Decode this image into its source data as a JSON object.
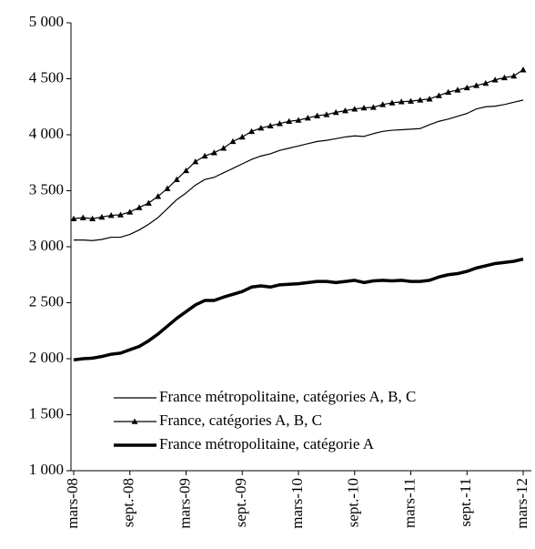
{
  "chart_data": {
    "type": "line",
    "categories": [
      "mars-08",
      null,
      null,
      null,
      null,
      null,
      "sept.-08",
      null,
      null,
      null,
      null,
      null,
      "mars-09",
      null,
      null,
      null,
      null,
      null,
      "sept.-09",
      null,
      null,
      null,
      null,
      null,
      "mars-10",
      null,
      null,
      null,
      null,
      null,
      "sept.-10",
      null,
      null,
      null,
      null,
      null,
      "mars-11",
      null,
      null,
      null,
      null,
      null,
      "sept.-11",
      null,
      null,
      null,
      null,
      null,
      "mars-12"
    ],
    "series": [
      {
        "name": "France métropolitaine, catégories A, B, C",
        "color": "#000000",
        "linewidth": 1.2,
        "marker": "none",
        "values": [
          3060,
          3060,
          3055,
          3065,
          3085,
          3085,
          3110,
          3150,
          3200,
          3260,
          3340,
          3420,
          3480,
          3550,
          3600,
          3620,
          3660,
          3700,
          3740,
          3780,
          3810,
          3830,
          3860,
          3880,
          3900,
          3920,
          3940,
          3950,
          3965,
          3980,
          3990,
          3985,
          4010,
          4030,
          4040,
          4045,
          4050,
          4055,
          4090,
          4120,
          4140,
          4165,
          4190,
          4230,
          4250,
          4255,
          4270,
          4290,
          4310
        ]
      },
      {
        "name": "France, catégories A, B, C",
        "color": "#000000",
        "linewidth": 1.2,
        "marker": "triangle",
        "values": [
          3250,
          3260,
          3250,
          3265,
          3280,
          3285,
          3310,
          3350,
          3390,
          3450,
          3520,
          3600,
          3680,
          3760,
          3810,
          3840,
          3880,
          3940,
          3980,
          4030,
          4060,
          4080,
          4100,
          4120,
          4130,
          4150,
          4170,
          4180,
          4200,
          4215,
          4230,
          4240,
          4245,
          4270,
          4285,
          4295,
          4300,
          4310,
          4320,
          4350,
          4380,
          4400,
          4420,
          4440,
          4460,
          4490,
          4510,
          4525,
          4580
        ]
      },
      {
        "name": "France métropolitaine, catégorie A",
        "color": "#000000",
        "linewidth": 3.5,
        "marker": "none",
        "values": [
          1990,
          2000,
          2005,
          2020,
          2040,
          2050,
          2080,
          2110,
          2160,
          2220,
          2290,
          2360,
          2420,
          2480,
          2520,
          2520,
          2550,
          2575,
          2600,
          2640,
          2650,
          2640,
          2660,
          2665,
          2670,
          2680,
          2690,
          2690,
          2680,
          2690,
          2700,
          2680,
          2695,
          2700,
          2695,
          2700,
          2690,
          2690,
          2700,
          2730,
          2750,
          2760,
          2780,
          2810,
          2830,
          2850,
          2860,
          2870,
          2890
        ]
      }
    ],
    "ylim": [
      1000,
      5000
    ],
    "yticks": [
      {
        "value": 1000,
        "label": "1 000"
      },
      {
        "value": 1500,
        "label": "1 500"
      },
      {
        "value": 2000,
        "label": "2 000"
      },
      {
        "value": 2500,
        "label": "2 500"
      },
      {
        "value": 3000,
        "label": "3 000"
      },
      {
        "value": 3500,
        "label": "3 500"
      },
      {
        "value": 4000,
        "label": "4 000"
      },
      {
        "value": 4500,
        "label": "4 500"
      },
      {
        "value": 5000,
        "label": "5 000"
      }
    ],
    "grid": false,
    "legend": "lower left"
  }
}
